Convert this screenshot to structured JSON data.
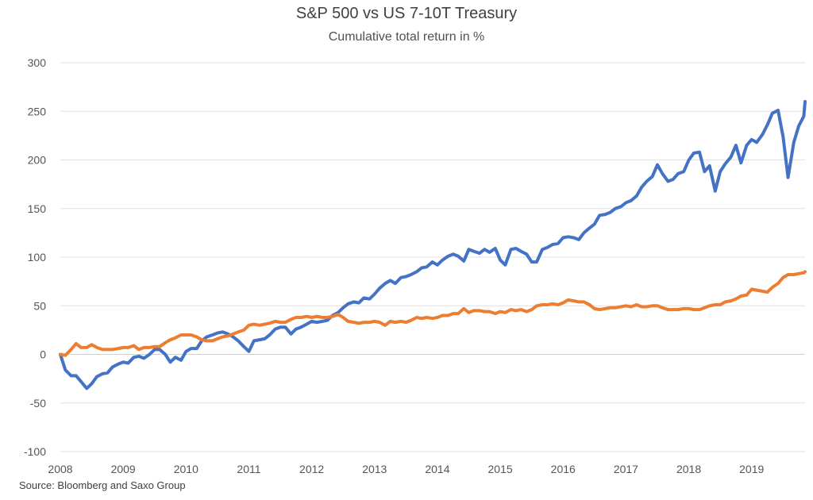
{
  "chart_data": {
    "type": "line",
    "title": "S&P 500 vs US 7-10T Treasury",
    "subtitle": "Cumulative total return in %",
    "source": "Source: Bloomberg and Saxo Group",
    "xlim": [
      2008,
      2019.85
    ],
    "ylim": [
      -100,
      300
    ],
    "x_ticks": [
      2008,
      2009,
      2010,
      2011,
      2012,
      2013,
      2014,
      2015,
      2016,
      2017,
      2018,
      2019
    ],
    "y_ticks": [
      -100,
      -50,
      0,
      50,
      100,
      150,
      200,
      250,
      300
    ],
    "grid": "horizontal",
    "legend": "none",
    "series": [
      {
        "color": "#4472C4",
        "points": [
          [
            2008.0,
            0
          ],
          [
            2008.08,
            -16
          ],
          [
            2008.17,
            -22
          ],
          [
            2008.25,
            -22
          ],
          [
            2008.33,
            -28
          ],
          [
            2008.42,
            -35
          ],
          [
            2008.5,
            -30
          ],
          [
            2008.58,
            -23
          ],
          [
            2008.67,
            -20
          ],
          [
            2008.75,
            -19
          ],
          [
            2008.83,
            -13
          ],
          [
            2008.92,
            -10
          ],
          [
            2009.0,
            -8
          ],
          [
            2009.08,
            -9
          ],
          [
            2009.17,
            -3
          ],
          [
            2009.25,
            -2
          ],
          [
            2009.33,
            -4
          ],
          [
            2009.42,
            0
          ],
          [
            2009.5,
            5
          ],
          [
            2009.58,
            5
          ],
          [
            2009.67,
            0
          ],
          [
            2009.75,
            -8
          ],
          [
            2009.83,
            -3
          ],
          [
            2009.92,
            -6
          ],
          [
            2010.0,
            3
          ],
          [
            2010.08,
            6
          ],
          [
            2010.17,
            6
          ],
          [
            2010.25,
            14
          ],
          [
            2010.33,
            18
          ],
          [
            2010.42,
            20
          ],
          [
            2010.5,
            22
          ],
          [
            2010.58,
            23
          ],
          [
            2010.67,
            21
          ],
          [
            2010.75,
            18
          ],
          [
            2010.83,
            14
          ],
          [
            2010.92,
            8
          ],
          [
            2011.0,
            3
          ],
          [
            2011.08,
            14
          ],
          [
            2011.17,
            15
          ],
          [
            2011.25,
            16
          ],
          [
            2011.33,
            20
          ],
          [
            2011.42,
            26
          ],
          [
            2011.5,
            28
          ],
          [
            2011.58,
            28
          ],
          [
            2011.67,
            21
          ],
          [
            2011.75,
            26
          ],
          [
            2011.83,
            28
          ],
          [
            2011.92,
            31
          ],
          [
            2012.0,
            34
          ],
          [
            2012.08,
            33
          ],
          [
            2012.17,
            34
          ],
          [
            2012.25,
            35
          ],
          [
            2012.33,
            40
          ],
          [
            2012.42,
            43
          ],
          [
            2012.5,
            48
          ],
          [
            2012.58,
            52
          ],
          [
            2012.67,
            54
          ],
          [
            2012.75,
            53
          ],
          [
            2012.83,
            58
          ],
          [
            2012.92,
            57
          ],
          [
            2013.0,
            62
          ],
          [
            2013.08,
            68
          ],
          [
            2013.17,
            73
          ],
          [
            2013.25,
            76
          ],
          [
            2013.33,
            73
          ],
          [
            2013.42,
            79
          ],
          [
            2013.5,
            80
          ],
          [
            2013.58,
            82
          ],
          [
            2013.67,
            85
          ],
          [
            2013.75,
            89
          ],
          [
            2013.83,
            90
          ],
          [
            2013.92,
            95
          ],
          [
            2014.0,
            92
          ],
          [
            2014.08,
            97
          ],
          [
            2014.17,
            101
          ],
          [
            2014.25,
            103
          ],
          [
            2014.33,
            101
          ],
          [
            2014.42,
            96
          ],
          [
            2014.5,
            108
          ],
          [
            2014.58,
            106
          ],
          [
            2014.67,
            104
          ],
          [
            2014.75,
            108
          ],
          [
            2014.83,
            105
          ],
          [
            2014.92,
            109
          ],
          [
            2015.0,
            97
          ],
          [
            2015.08,
            92
          ],
          [
            2015.17,
            108
          ],
          [
            2015.25,
            109
          ],
          [
            2015.33,
            106
          ],
          [
            2015.42,
            103
          ],
          [
            2015.5,
            95
          ],
          [
            2015.58,
            95
          ],
          [
            2015.67,
            108
          ],
          [
            2015.75,
            110
          ],
          [
            2015.83,
            113
          ],
          [
            2015.92,
            114
          ],
          [
            2016.0,
            120
          ],
          [
            2016.08,
            121
          ],
          [
            2016.17,
            120
          ],
          [
            2016.25,
            118
          ],
          [
            2016.33,
            125
          ],
          [
            2016.42,
            130
          ],
          [
            2016.5,
            134
          ],
          [
            2016.58,
            143
          ],
          [
            2016.67,
            144
          ],
          [
            2016.75,
            146
          ],
          [
            2016.83,
            150
          ],
          [
            2016.92,
            152
          ],
          [
            2017.0,
            156
          ],
          [
            2017.08,
            158
          ],
          [
            2017.17,
            163
          ],
          [
            2017.25,
            172
          ],
          [
            2017.33,
            178
          ],
          [
            2017.42,
            183
          ],
          [
            2017.5,
            195
          ],
          [
            2017.58,
            186
          ],
          [
            2017.67,
            178
          ],
          [
            2017.75,
            180
          ],
          [
            2017.83,
            186
          ],
          [
            2017.92,
            188
          ],
          [
            2018.0,
            200
          ],
          [
            2018.08,
            207
          ],
          [
            2018.17,
            208
          ],
          [
            2018.25,
            188
          ],
          [
            2018.33,
            194
          ],
          [
            2018.42,
            168
          ],
          [
            2018.5,
            188
          ],
          [
            2018.58,
            196
          ],
          [
            2018.67,
            203
          ],
          [
            2018.75,
            215
          ],
          [
            2018.83,
            197
          ],
          [
            2018.92,
            215
          ],
          [
            2019.0,
            221
          ],
          [
            2019.08,
            218
          ],
          [
            2019.17,
            226
          ],
          [
            2019.25,
            236
          ],
          [
            2019.33,
            248
          ],
          [
            2019.42,
            251
          ],
          [
            2019.5,
            224
          ],
          [
            2019.58,
            182
          ],
          [
            2019.67,
            218
          ],
          [
            2019.75,
            235
          ],
          [
            2019.83,
            245
          ],
          [
            2019.85,
            260
          ]
        ]
      },
      {
        "color": "#ED7D31",
        "points": [
          [
            2008.0,
            0
          ],
          [
            2008.08,
            -1
          ],
          [
            2008.17,
            5
          ],
          [
            2008.25,
            11
          ],
          [
            2008.33,
            7
          ],
          [
            2008.42,
            7
          ],
          [
            2008.5,
            10
          ],
          [
            2008.58,
            7
          ],
          [
            2008.67,
            5
          ],
          [
            2008.75,
            5
          ],
          [
            2008.83,
            5
          ],
          [
            2008.92,
            6
          ],
          [
            2009.0,
            7
          ],
          [
            2009.08,
            7
          ],
          [
            2009.17,
            9
          ],
          [
            2009.25,
            5
          ],
          [
            2009.33,
            7
          ],
          [
            2009.42,
            7
          ],
          [
            2009.5,
            8
          ],
          [
            2009.58,
            8
          ],
          [
            2009.67,
            12
          ],
          [
            2009.75,
            15
          ],
          [
            2009.83,
            17
          ],
          [
            2009.92,
            20
          ],
          [
            2010.0,
            20
          ],
          [
            2010.08,
            20
          ],
          [
            2010.17,
            18
          ],
          [
            2010.25,
            15
          ],
          [
            2010.33,
            14
          ],
          [
            2010.42,
            14
          ],
          [
            2010.5,
            16
          ],
          [
            2010.58,
            18
          ],
          [
            2010.67,
            19
          ],
          [
            2010.75,
            21
          ],
          [
            2010.83,
            23
          ],
          [
            2010.92,
            25
          ],
          [
            2011.0,
            30
          ],
          [
            2011.08,
            31
          ],
          [
            2011.17,
            30
          ],
          [
            2011.25,
            31
          ],
          [
            2011.33,
            32
          ],
          [
            2011.42,
            34
          ],
          [
            2011.5,
            33
          ],
          [
            2011.58,
            33
          ],
          [
            2011.67,
            36
          ],
          [
            2011.75,
            38
          ],
          [
            2011.83,
            38
          ],
          [
            2011.92,
            39
          ],
          [
            2012.0,
            38
          ],
          [
            2012.08,
            39
          ],
          [
            2012.17,
            38
          ],
          [
            2012.25,
            38
          ],
          [
            2012.33,
            39
          ],
          [
            2012.42,
            41
          ],
          [
            2012.5,
            38
          ],
          [
            2012.58,
            34
          ],
          [
            2012.67,
            33
          ],
          [
            2012.75,
            32
          ],
          [
            2012.83,
            33
          ],
          [
            2012.92,
            33
          ],
          [
            2013.0,
            34
          ],
          [
            2013.08,
            33
          ],
          [
            2013.17,
            30
          ],
          [
            2013.25,
            34
          ],
          [
            2013.33,
            33
          ],
          [
            2013.42,
            34
          ],
          [
            2013.5,
            33
          ],
          [
            2013.58,
            35
          ],
          [
            2013.67,
            38
          ],
          [
            2013.75,
            37
          ],
          [
            2013.83,
            38
          ],
          [
            2013.92,
            37
          ],
          [
            2014.0,
            38
          ],
          [
            2014.08,
            40
          ],
          [
            2014.17,
            40
          ],
          [
            2014.25,
            42
          ],
          [
            2014.33,
            42
          ],
          [
            2014.42,
            47
          ],
          [
            2014.5,
            43
          ],
          [
            2014.58,
            45
          ],
          [
            2014.67,
            45
          ],
          [
            2014.75,
            44
          ],
          [
            2014.83,
            44
          ],
          [
            2014.92,
            42
          ],
          [
            2015.0,
            44
          ],
          [
            2015.08,
            43
          ],
          [
            2015.17,
            46
          ],
          [
            2015.25,
            45
          ],
          [
            2015.33,
            46
          ],
          [
            2015.42,
            44
          ],
          [
            2015.5,
            46
          ],
          [
            2015.58,
            50
          ],
          [
            2015.67,
            51
          ],
          [
            2015.75,
            51
          ],
          [
            2015.83,
            52
          ],
          [
            2015.92,
            51
          ],
          [
            2016.0,
            53
          ],
          [
            2016.08,
            56
          ],
          [
            2016.17,
            55
          ],
          [
            2016.25,
            54
          ],
          [
            2016.33,
            54
          ],
          [
            2016.42,
            51
          ],
          [
            2016.5,
            47
          ],
          [
            2016.58,
            46
          ],
          [
            2016.67,
            47
          ],
          [
            2016.75,
            48
          ],
          [
            2016.83,
            48
          ],
          [
            2016.92,
            49
          ],
          [
            2017.0,
            50
          ],
          [
            2017.08,
            49
          ],
          [
            2017.17,
            51
          ],
          [
            2017.25,
            49
          ],
          [
            2017.33,
            49
          ],
          [
            2017.42,
            50
          ],
          [
            2017.5,
            50
          ],
          [
            2017.58,
            48
          ],
          [
            2017.67,
            46
          ],
          [
            2017.75,
            46
          ],
          [
            2017.83,
            46
          ],
          [
            2017.92,
            47
          ],
          [
            2018.0,
            47
          ],
          [
            2018.08,
            46
          ],
          [
            2018.17,
            46
          ],
          [
            2018.25,
            48
          ],
          [
            2018.33,
            50
          ],
          [
            2018.42,
            51
          ],
          [
            2018.5,
            51
          ],
          [
            2018.58,
            54
          ],
          [
            2018.67,
            55
          ],
          [
            2018.75,
            57
          ],
          [
            2018.83,
            60
          ],
          [
            2018.92,
            61
          ],
          [
            2019.0,
            67
          ],
          [
            2019.08,
            66
          ],
          [
            2019.17,
            65
          ],
          [
            2019.25,
            64
          ],
          [
            2019.33,
            69
          ],
          [
            2019.42,
            73
          ],
          [
            2019.5,
            79
          ],
          [
            2019.58,
            82
          ],
          [
            2019.67,
            82
          ],
          [
            2019.75,
            83
          ],
          [
            2019.83,
            84
          ],
          [
            2019.85,
            85
          ]
        ]
      }
    ]
  }
}
